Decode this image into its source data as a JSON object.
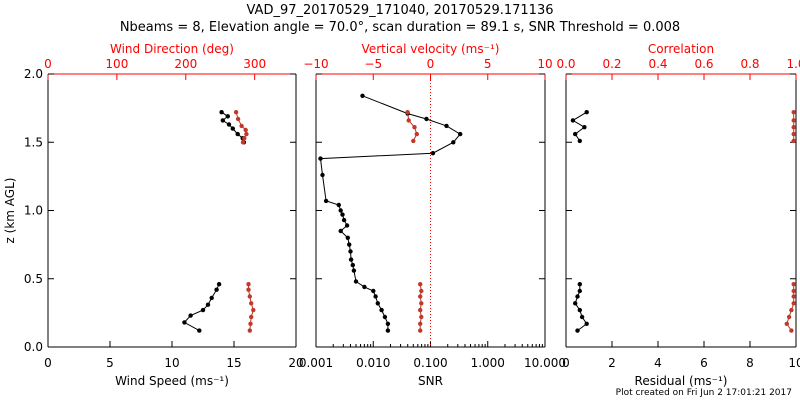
{
  "title_line1": "VAD_97_20170529_171040, 20170529.171136",
  "title_line2": "Nbeams = 8, Elevation angle = 70.0°, scan duration = 89.1 s, SNR Threshold = 0.008",
  "footer": "Plot created on Fri Jun  2 17:01:21 2017",
  "colors": {
    "black": "#000000",
    "red": "#c0392b",
    "axis_red": "#ff0000"
  },
  "chart_data": [
    {
      "type": "line",
      "ylabel": "z (km AGL)",
      "ylim": [
        0,
        2
      ],
      "yticks": [
        "0.0",
        "0.5",
        "1.0",
        "1.5",
        "2.0"
      ],
      "bottom_axis": {
        "label": "Wind Speed (ms⁻¹)",
        "lim": [
          0,
          20
        ],
        "ticks": [
          "0",
          "5",
          "10",
          "15",
          "20"
        ]
      },
      "top_axis": {
        "label": "Wind Direction (deg)",
        "lim": [
          0,
          360
        ],
        "ticks": [
          "0",
          "100",
          "200",
          "300"
        ]
      },
      "series": [
        {
          "axis": "bottom",
          "color": "black",
          "points": [
            [
              12.2,
              0.12
            ],
            [
              11.0,
              0.18
            ],
            [
              11.5,
              0.23
            ],
            [
              12.5,
              0.27
            ],
            [
              12.9,
              0.31
            ],
            [
              13.2,
              0.36
            ],
            [
              13.6,
              0.42
            ],
            [
              13.8,
              0.46
            ],
            [
              14.0,
              1.72
            ],
            [
              14.5,
              1.69
            ],
            [
              14.1,
              1.66
            ],
            [
              14.6,
              1.63
            ],
            [
              14.9,
              1.6
            ],
            [
              15.3,
              1.56
            ],
            [
              15.7,
              1.53
            ],
            [
              15.8,
              1.5
            ]
          ]
        },
        {
          "axis": "top",
          "color": "red",
          "points": [
            [
              293,
              0.12
            ],
            [
              294,
              0.17
            ],
            [
              295,
              0.22
            ],
            [
              298,
              0.27
            ],
            [
              295,
              0.32
            ],
            [
              293,
              0.37
            ],
            [
              291,
              0.42
            ],
            [
              291,
              0.46
            ],
            [
              273,
              1.72
            ],
            [
              276,
              1.67
            ],
            [
              281,
              1.62
            ],
            [
              287,
              1.59
            ],
            [
              288,
              1.56
            ],
            [
              285,
              1.53
            ],
            [
              283,
              1.5
            ]
          ]
        }
      ]
    },
    {
      "type": "line",
      "bottom_axis": {
        "label": "SNR",
        "lim": [
          0.001,
          10
        ],
        "log": true,
        "ticks": [
          "0.001",
          "0.010",
          "0.100",
          "1.000",
          "10.000"
        ]
      },
      "top_axis": {
        "label": "Vertical velocity (ms⁻¹)",
        "lim": [
          -10,
          10
        ],
        "ticks": [
          "−10",
          "−5",
          "0",
          "5",
          "10"
        ],
        "zero_line": true
      },
      "series": [
        {
          "axis": "bottom",
          "color": "black",
          "points": [
            [
              0.018,
              0.12
            ],
            [
              0.018,
              0.17
            ],
            [
              0.016,
              0.22
            ],
            [
              0.014,
              0.27
            ],
            [
              0.012,
              0.32
            ],
            [
              0.011,
              0.37
            ],
            [
              0.01,
              0.41
            ],
            [
              0.007,
              0.44
            ],
            [
              0.005,
              0.48
            ],
            [
              0.0046,
              0.56
            ],
            [
              0.0044,
              0.6
            ],
            [
              0.0041,
              0.64
            ],
            [
              0.004,
              0.7
            ],
            [
              0.0038,
              0.75
            ],
            [
              0.0036,
              0.8
            ],
            [
              0.0027,
              0.85
            ],
            [
              0.0035,
              0.89
            ],
            [
              0.0031,
              0.93
            ],
            [
              0.0029,
              0.97
            ],
            [
              0.0027,
              1.0
            ],
            [
              0.0025,
              1.04
            ],
            [
              0.0015,
              1.07
            ],
            [
              0.0013,
              1.26
            ],
            [
              0.0012,
              1.38
            ],
            [
              0.11,
              1.42
            ],
            [
              0.25,
              1.5
            ],
            [
              0.33,
              1.56
            ],
            [
              0.19,
              1.62
            ],
            [
              0.085,
              1.67
            ],
            [
              0.04,
              1.71
            ],
            [
              0.0065,
              1.84
            ]
          ]
        },
        {
          "axis": "top",
          "color": "red",
          "points": [
            [
              -0.9,
              0.12
            ],
            [
              -0.9,
              0.17
            ],
            [
              -0.8,
              0.22
            ],
            [
              -0.9,
              0.27
            ],
            [
              -0.8,
              0.32
            ],
            [
              -0.9,
              0.37
            ],
            [
              -0.8,
              0.41
            ],
            [
              -0.9,
              0.46
            ],
            [
              -1.5,
              1.51
            ],
            [
              -1.2,
              1.56
            ],
            [
              -1.4,
              1.61
            ],
            [
              -1.9,
              1.66
            ],
            [
              -2.0,
              1.72
            ]
          ]
        }
      ]
    },
    {
      "type": "line",
      "bottom_axis": {
        "label": "Residual (ms⁻¹)",
        "lim": [
          0,
          10
        ],
        "ticks": [
          "0",
          "2",
          "4",
          "6",
          "8",
          "10"
        ]
      },
      "top_axis": {
        "label": "Correlation",
        "lim": [
          0,
          1
        ],
        "ticks": [
          "0.0",
          "0.2",
          "0.4",
          "0.6",
          "0.8",
          "1.0"
        ]
      },
      "series": [
        {
          "axis": "bottom",
          "color": "black",
          "points": [
            [
              0.5,
              0.12
            ],
            [
              0.9,
              0.17
            ],
            [
              0.7,
              0.22
            ],
            [
              0.6,
              0.27
            ],
            [
              0.4,
              0.32
            ],
            [
              0.5,
              0.37
            ],
            [
              0.6,
              0.41
            ],
            [
              0.6,
              0.46
            ],
            [
              0.6,
              1.51
            ],
            [
              0.4,
              1.56
            ],
            [
              0.8,
              1.61
            ],
            [
              0.3,
              1.66
            ],
            [
              0.9,
              1.72
            ]
          ]
        },
        {
          "axis": "top",
          "color": "red",
          "points": [
            [
              0.98,
              0.12
            ],
            [
              0.96,
              0.17
            ],
            [
              0.97,
              0.22
            ],
            [
              0.98,
              0.27
            ],
            [
              0.99,
              0.32
            ],
            [
              0.99,
              0.37
            ],
            [
              0.99,
              0.41
            ],
            [
              0.99,
              0.46
            ],
            [
              0.99,
              1.51
            ],
            [
              0.99,
              1.56
            ],
            [
              0.99,
              1.61
            ],
            [
              0.99,
              1.66
            ],
            [
              0.99,
              1.72
            ]
          ]
        }
      ]
    }
  ]
}
